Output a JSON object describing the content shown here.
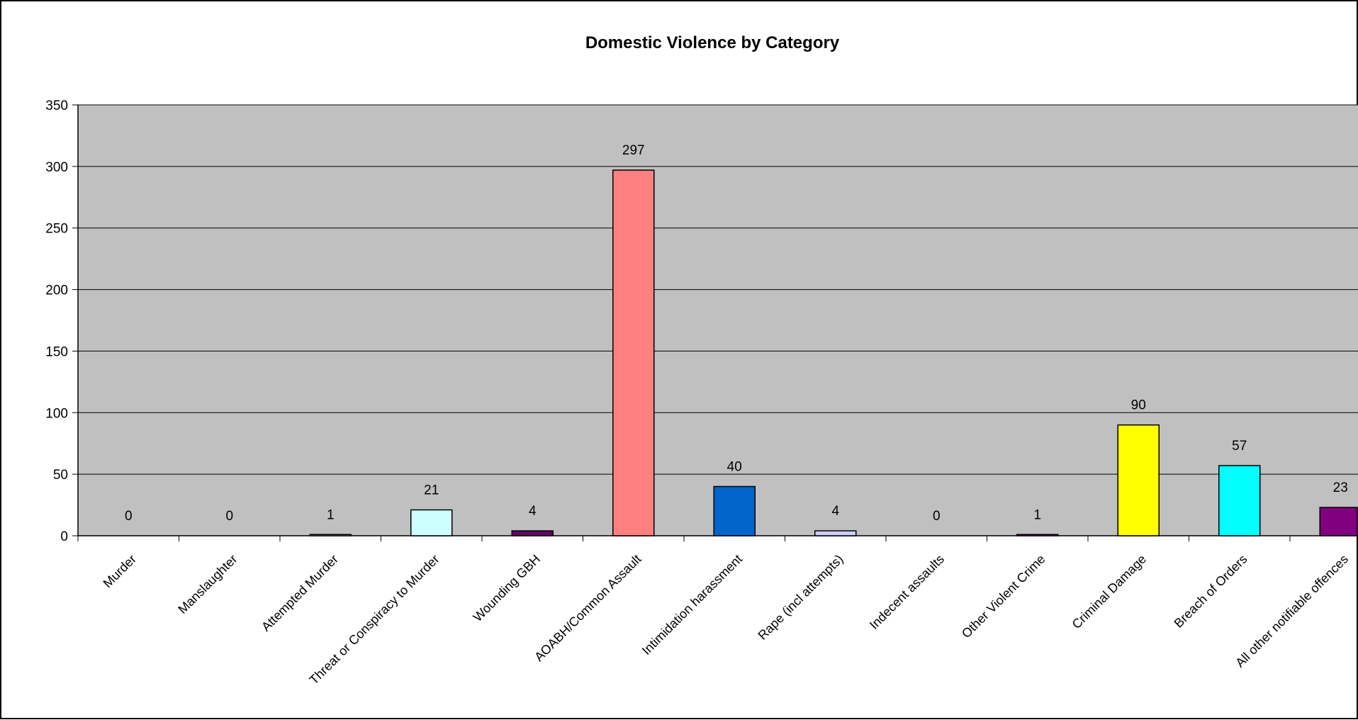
{
  "chart_data": {
    "type": "bar",
    "title": "Domestic Violence by Category",
    "xlabel": "",
    "ylabel": "",
    "ylim": [
      0,
      350
    ],
    "yticks": [
      0,
      50,
      100,
      150,
      200,
      250,
      300,
      350
    ],
    "grid": true,
    "legend": "none",
    "plot_background": "#C0C0C0",
    "categories": [
      "Murder",
      "Manslaughter",
      "Attempted Murder",
      "Threat or Conspiracy to Murder",
      "Wounding GBH",
      "AOABH/Common Assault",
      "Intimidation harassment",
      "Rape (incl attempts)",
      "Indecent assaults",
      "Other Violent Crime",
      "Criminal Damage",
      "Breach of Orders",
      "All other notifiable offences"
    ],
    "values": [
      0,
      0,
      1,
      21,
      4,
      297,
      40,
      4,
      0,
      1,
      90,
      57,
      23
    ],
    "data_labels": [
      "0",
      "0",
      "1",
      "21",
      "4",
      "297",
      "40",
      "4",
      "0",
      "1",
      "90",
      "57",
      "23"
    ],
    "colors": [
      "#9999FF",
      "#993366",
      "#FFFFCC",
      "#CCFFFF",
      "#660066",
      "#FF8080",
      "#0066CC",
      "#CCCCFF",
      "#000080",
      "#FF00FF",
      "#FFFF00",
      "#00FFFF",
      "#800080"
    ]
  }
}
